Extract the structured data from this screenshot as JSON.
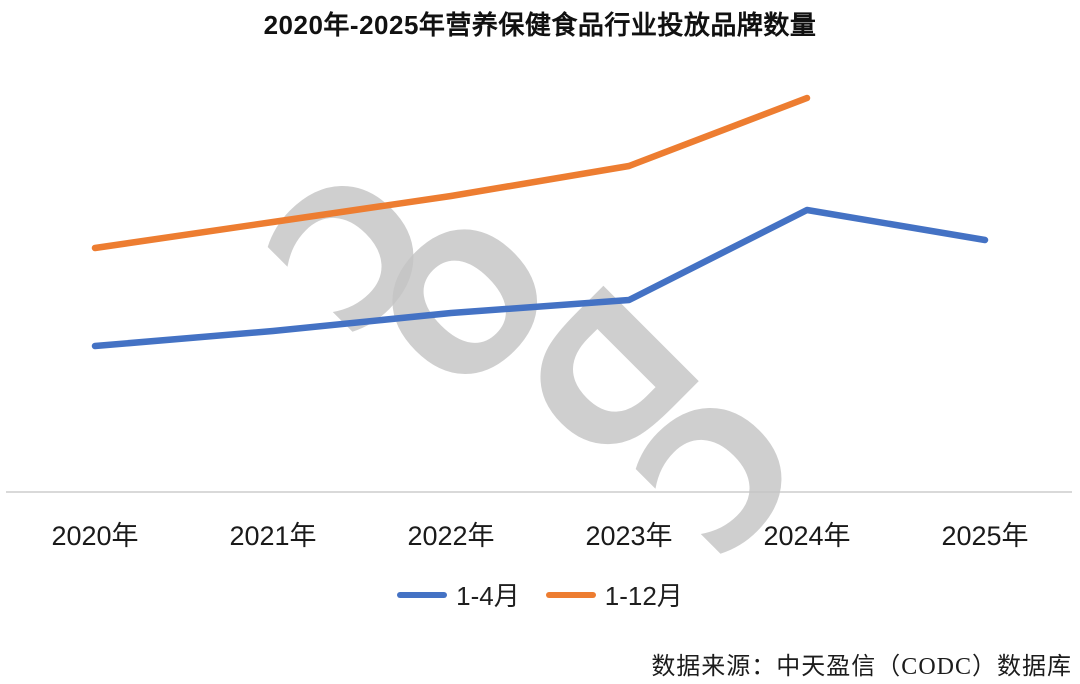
{
  "title": "2020年-2025年营养保健食品行业投放品牌数量",
  "source": "数据来源：中天盈信（CODC）数据库",
  "watermark": {
    "letters": [
      "C",
      "O",
      "D",
      "C"
    ]
  },
  "colors": {
    "series_blue": "#4472C4",
    "series_orange": "#ED7D31",
    "axis_line": "#D9D9D9",
    "watermark_gray": "#C5C5C5"
  },
  "chart_data": {
    "type": "line",
    "title": "2020年-2025年营养保健食品行业投放品牌数量",
    "categories": [
      "2020年",
      "2021年",
      "2022年",
      "2023年",
      "2024年",
      "2025年"
    ],
    "series": [
      {
        "name": "1-4月",
        "color": "#4472C4",
        "values": [
          146,
          161,
          179,
          192,
          282,
          252
        ]
      },
      {
        "name": "1-12月",
        "color": "#ED7D31",
        "values": [
          244,
          270,
          296,
          326,
          394,
          null
        ]
      }
    ],
    "xlabel": "",
    "ylabel": "",
    "ylim": [
      0,
      450
    ],
    "y_axis_visible": false,
    "grid": false,
    "legend_position": "bottom"
  }
}
